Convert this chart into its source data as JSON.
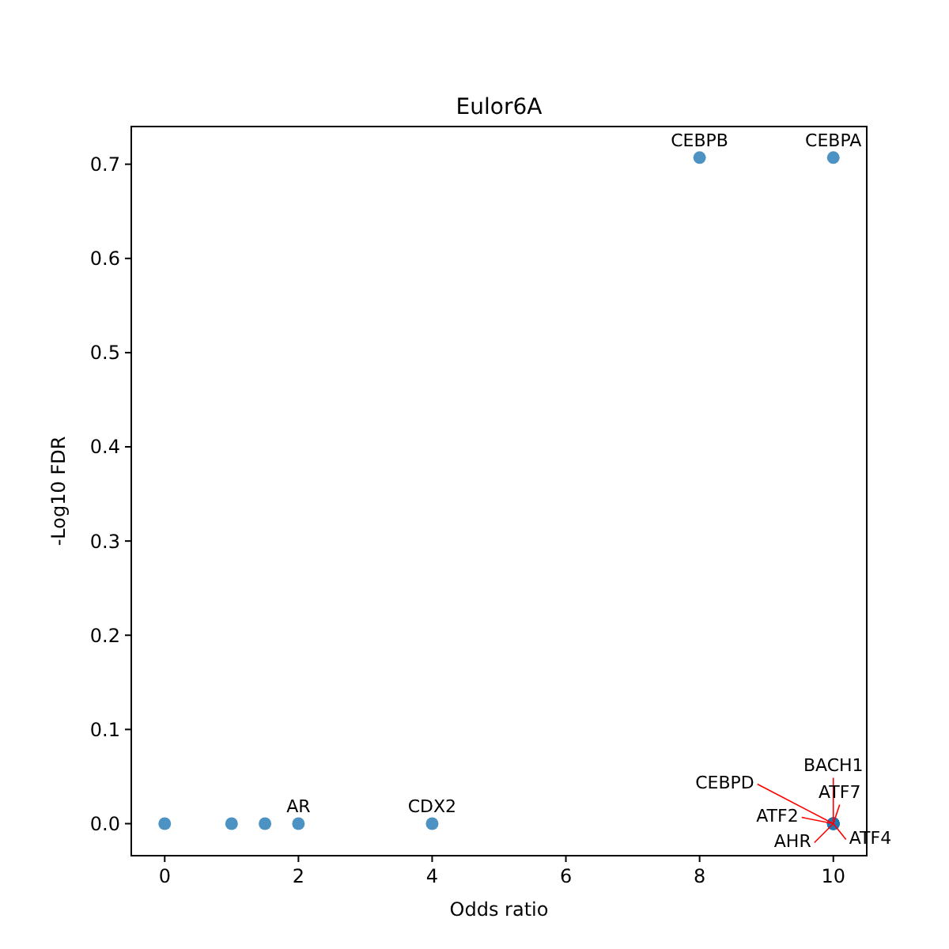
{
  "chart_data": {
    "type": "scatter",
    "title": "Eulor6A",
    "xlabel": "Odds ratio",
    "ylabel": "-Log10 FDR",
    "x": [
      0,
      1,
      1.5,
      2,
      4,
      8,
      10,
      10,
      10,
      10,
      10,
      10,
      10
    ],
    "series": [
      {
        "color": "#1f77b4",
        "values": [
          0,
          0,
          0,
          0,
          0,
          0.707,
          0.707,
          0,
          0,
          0,
          0,
          0,
          0
        ]
      }
    ],
    "xlim": [
      -0.5,
      10.5
    ],
    "xticks": [
      0,
      2,
      4,
      6,
      8,
      10
    ],
    "ylim": [
      -0.034,
      0.74
    ],
    "yticks": [
      {
        "value": 0,
        "label": "0.0"
      },
      {
        "value": 0.1,
        "label": "0.1"
      },
      {
        "value": 0.2,
        "label": "0.2"
      },
      {
        "value": 0.3,
        "label": "0.3"
      },
      {
        "value": 0.4,
        "label": "0.4"
      },
      {
        "value": 0.5,
        "label": "0.5"
      },
      {
        "value": 0.6,
        "label": "0.6"
      },
      {
        "value": 0.7,
        "label": "0.7"
      }
    ],
    "grid": false,
    "marker": "circle",
    "annotations": [
      {
        "text": "AR",
        "x": 2,
        "y": 0
      },
      {
        "text": "CDX2",
        "x": 4,
        "y": 0
      },
      {
        "text": "CEBPB",
        "x": 8,
        "y": 0.707
      },
      {
        "text": "CEBPA",
        "x": 10,
        "y": 0.707
      },
      {
        "text": "BACH1",
        "x": 10,
        "y": 0
      },
      {
        "text": "ATF7",
        "x": 10,
        "y": 0
      },
      {
        "text": "CEBPD",
        "x": 10,
        "y": 0
      },
      {
        "text": "ATF2",
        "x": 10,
        "y": 0
      },
      {
        "text": "AHR",
        "x": 10,
        "y": 0
      },
      {
        "text": "ATF4",
        "x": 10,
        "y": 0
      }
    ]
  }
}
